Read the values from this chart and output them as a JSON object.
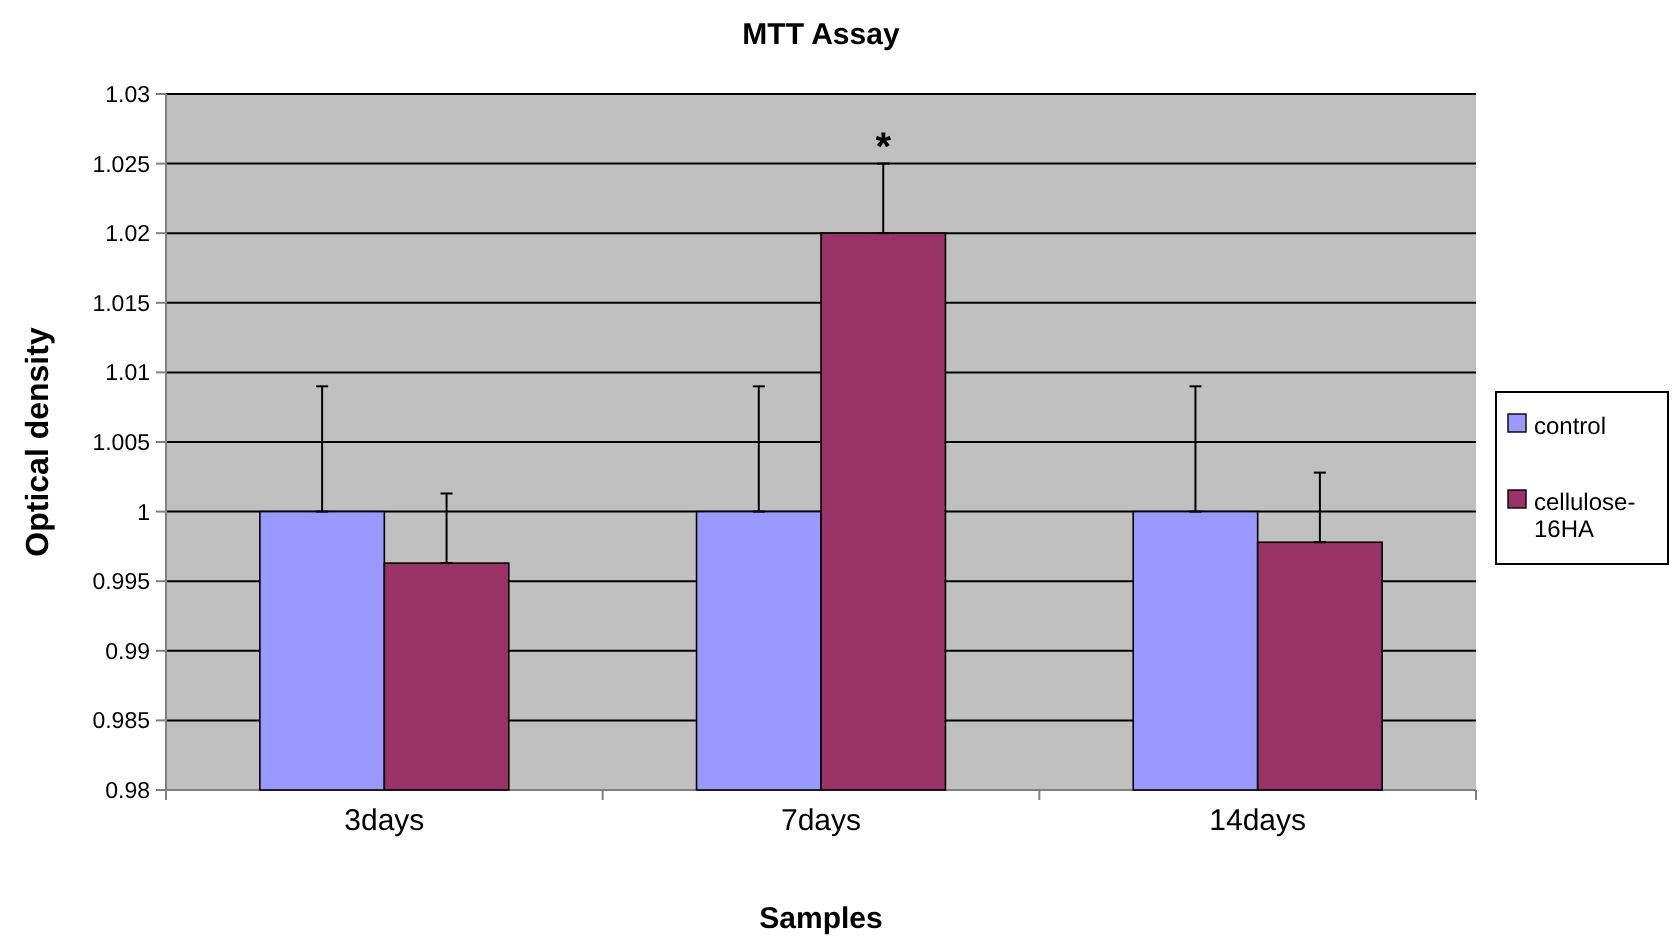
{
  "chart_data": {
    "type": "bar",
    "title": "MTT Assay",
    "xlabel": "Samples",
    "ylabel": "Optical density",
    "categories": [
      "3days",
      "7days",
      "14days"
    ],
    "series": [
      {
        "name": "control",
        "color": "#9999ff",
        "values": [
          1,
          1,
          1
        ],
        "errors": [
          [
            1,
            1.009
          ],
          [
            1,
            1.009
          ],
          [
            1,
            1.009
          ]
        ]
      },
      {
        "name": "cellulose-16HA",
        "color": "#993366",
        "values": [
          0.9963,
          1.02,
          0.9978
        ],
        "errors": [
          [
            0.9963,
            1.0013
          ],
          [
            1.02,
            1.025
          ],
          [
            0.9978,
            1.0028
          ]
        ]
      }
    ],
    "ylim": [
      0.98,
      1.03
    ],
    "yticks": [
      0.98,
      0.985,
      0.99,
      0.995,
      1,
      1.005,
      1.01,
      1.015,
      1.02,
      1.025,
      1.03
    ],
    "grid": "y",
    "legend": "right",
    "annotations": [
      "*"
    ]
  }
}
